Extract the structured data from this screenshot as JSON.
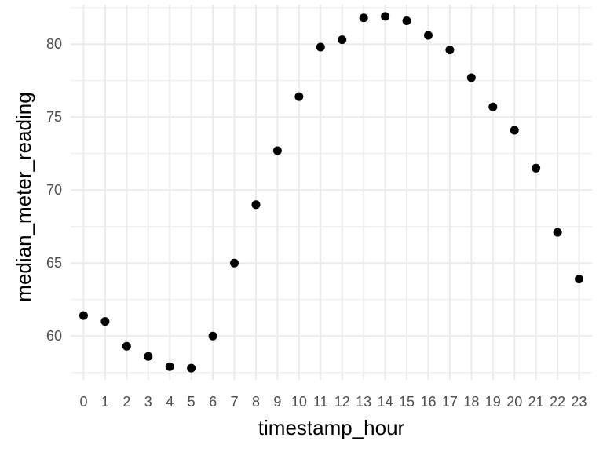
{
  "chart_data": {
    "type": "scatter",
    "xlabel": "timestamp_hour",
    "ylabel": "median_meter_reading",
    "x": [
      0,
      1,
      2,
      3,
      4,
      5,
      6,
      7,
      8,
      9,
      10,
      11,
      12,
      13,
      14,
      15,
      16,
      17,
      18,
      19,
      20,
      21,
      22,
      23
    ],
    "y": [
      61.4,
      61.0,
      59.3,
      58.6,
      57.9,
      57.8,
      60.0,
      65.0,
      69.0,
      72.7,
      76.4,
      79.8,
      80.3,
      81.8,
      81.9,
      81.6,
      80.6,
      79.6,
      77.7,
      75.7,
      74.1,
      71.5,
      67.1,
      63.9
    ],
    "x_ticks": [
      "0",
      "1",
      "2",
      "3",
      "4",
      "5",
      "6",
      "7",
      "8",
      "9",
      "10",
      "11",
      "12",
      "13",
      "14",
      "15",
      "16",
      "17",
      "18",
      "19",
      "20",
      "21",
      "22",
      "23"
    ],
    "y_ticks": [
      "60",
      "65",
      "70",
      "75",
      "80"
    ],
    "xlim": [
      -0.6,
      23.6
    ],
    "ylim": [
      57.0,
      82.7
    ],
    "grid": true,
    "legend": "none",
    "colors": {
      "point": "#000000",
      "grid": "#ebebeb",
      "tick_text": "#4d4d4d"
    }
  }
}
